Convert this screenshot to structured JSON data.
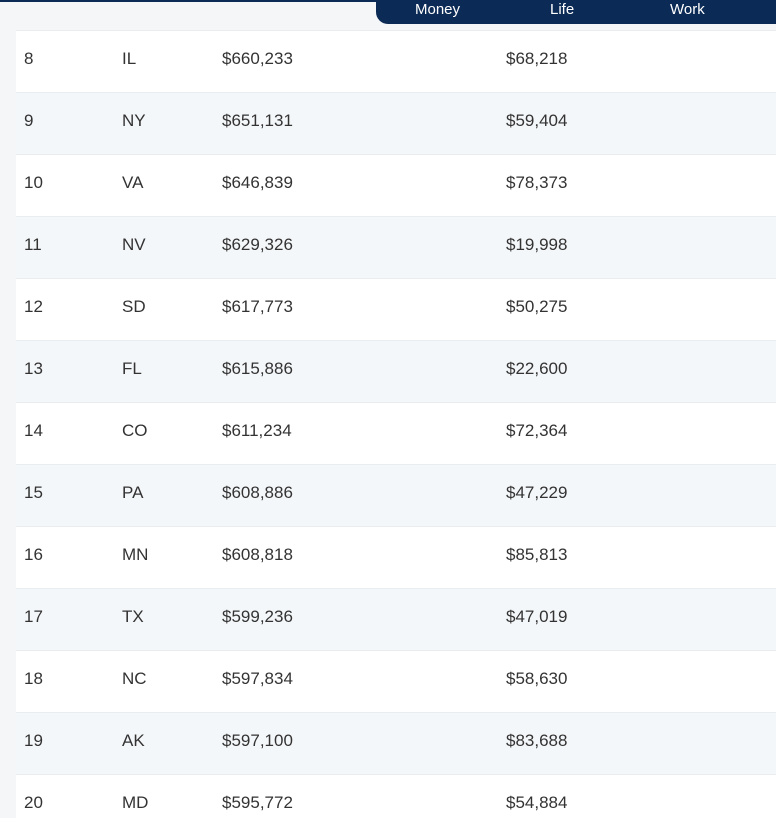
{
  "nav": {
    "tabs": [
      "Money",
      "Life",
      "Work"
    ]
  },
  "colors": {
    "nav_bg": "#0b2a55",
    "row_alt": "#f4f7f9",
    "text": "#333333"
  },
  "table": {
    "rows": [
      {
        "rank": "8",
        "state": "IL",
        "value1": "$660,233",
        "value2": "$68,218"
      },
      {
        "rank": "9",
        "state": "NY",
        "value1": "$651,131",
        "value2": "$59,404"
      },
      {
        "rank": "10",
        "state": "VA",
        "value1": "$646,839",
        "value2": "$78,373"
      },
      {
        "rank": "11",
        "state": "NV",
        "value1": "$629,326",
        "value2": "$19,998"
      },
      {
        "rank": "12",
        "state": "SD",
        "value1": "$617,773",
        "value2": "$50,275"
      },
      {
        "rank": "13",
        "state": "FL",
        "value1": "$615,886",
        "value2": "$22,600"
      },
      {
        "rank": "14",
        "state": "CO",
        "value1": "$611,234",
        "value2": "$72,364"
      },
      {
        "rank": "15",
        "state": "PA",
        "value1": "$608,886",
        "value2": "$47,229"
      },
      {
        "rank": "16",
        "state": "MN",
        "value1": "$608,818",
        "value2": "$85,813"
      },
      {
        "rank": "17",
        "state": "TX",
        "value1": "$599,236",
        "value2": "$47,019"
      },
      {
        "rank": "18",
        "state": "NC",
        "value1": "$597,834",
        "value2": "$58,630"
      },
      {
        "rank": "19",
        "state": "AK",
        "value1": "$597,100",
        "value2": "$83,688"
      },
      {
        "rank": "20",
        "state": "MD",
        "value1": "$595,772",
        "value2": "$54,884"
      }
    ]
  }
}
